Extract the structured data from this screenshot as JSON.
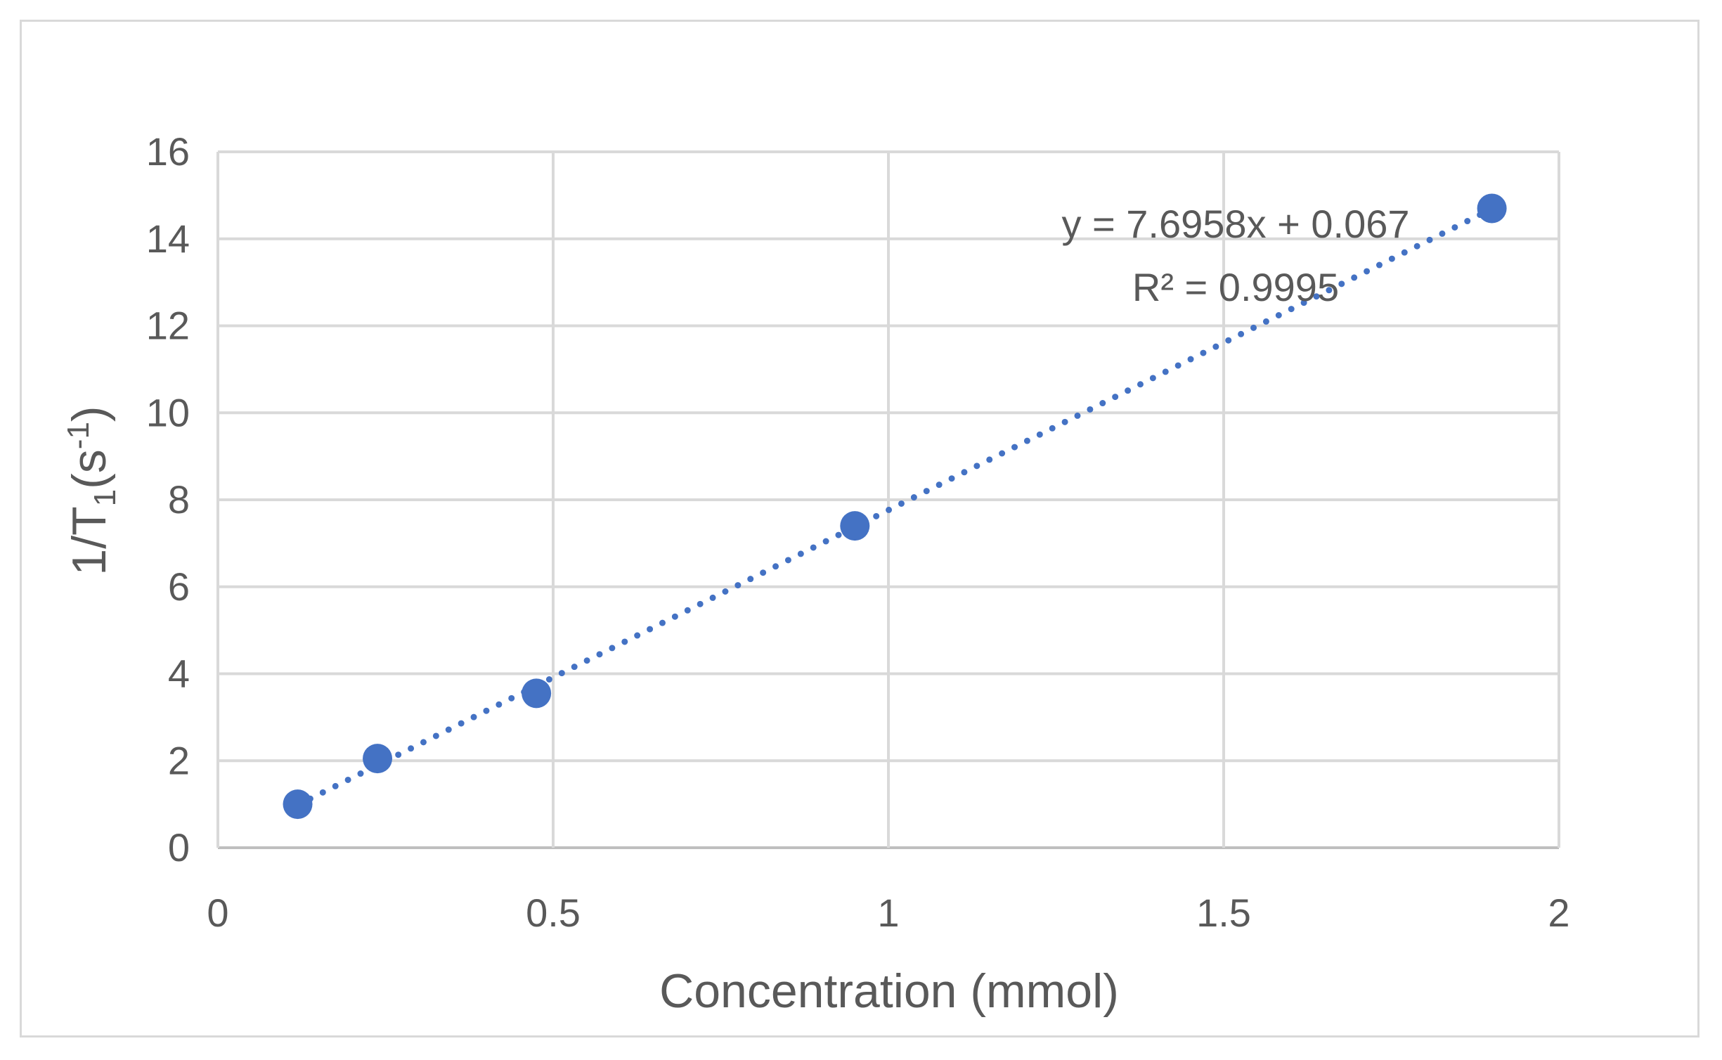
{
  "chart_data": {
    "type": "scatter",
    "xlabel": "Concentration (mmol)",
    "ylabel": {
      "main": "1/T",
      "sub1": "1",
      "paren_open": "(s",
      "sup": "-1",
      "paren_close": ")"
    },
    "xlim": [
      0,
      2
    ],
    "ylim": [
      0,
      16
    ],
    "x_ticks": [
      0,
      0.5,
      1,
      1.5,
      2
    ],
    "x_tick_labels": [
      "0",
      "0.5",
      "1",
      "1.5",
      "2"
    ],
    "y_ticks": [
      0,
      2,
      4,
      6,
      8,
      10,
      12,
      14,
      16
    ],
    "y_tick_labels": [
      "0",
      "2",
      "4",
      "6",
      "8",
      "10",
      "12",
      "14",
      "16"
    ],
    "grid": true,
    "series": [
      {
        "x": [
          0.119,
          0.238,
          0.475,
          0.95,
          1.9
        ],
        "y": [
          1.0,
          2.05,
          3.55,
          7.4,
          14.7
        ]
      }
    ],
    "trendline": {
      "type": "linear",
      "slope": 7.6958,
      "intercept": 0.067,
      "x_range": [
        0.119,
        1.9
      ],
      "style": "dotted"
    },
    "equation_text": "y = 7.6958x + 0.067",
    "r2_text": "R² = 0.9995",
    "colors": {
      "marker": "#4472c4",
      "trendline": "#4472c4",
      "grid": "#d9d9d9",
      "text": "#595959",
      "frame": "#d9d9d9"
    }
  }
}
